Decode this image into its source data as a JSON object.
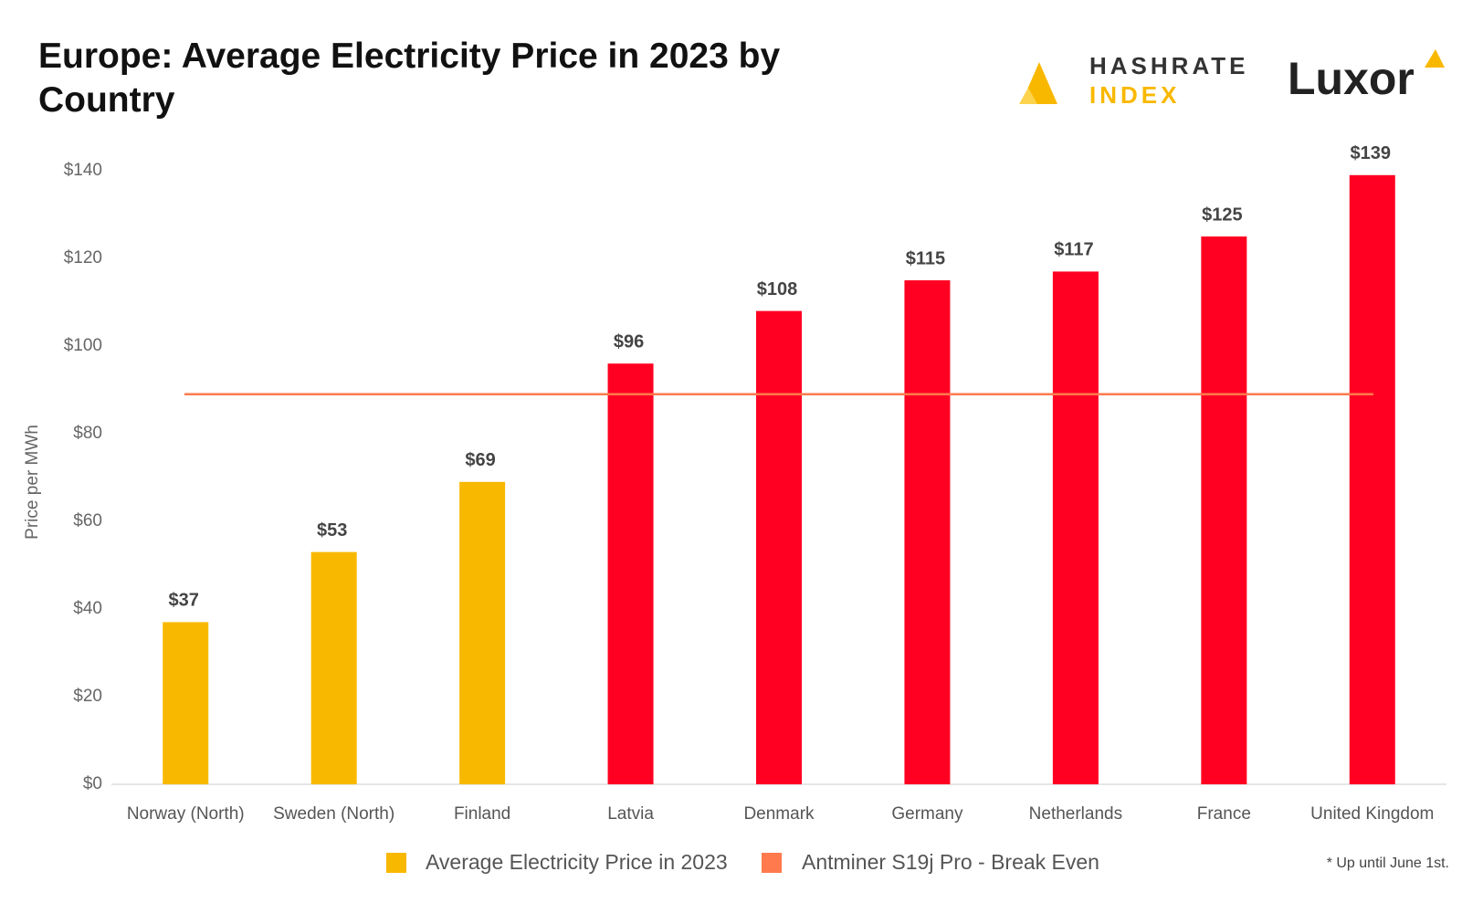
{
  "chart_data": {
    "type": "bar",
    "title": "Europe: Average Electricity Price in 2023 by Country",
    "y_label": "Price per MWh",
    "categories": [
      "Norway (North)",
      "Sweden (North)",
      "Finland",
      "Latvia",
      "Denmark",
      "Germany",
      "Netherlands",
      "France",
      "United Kingdom"
    ],
    "series": [
      {
        "name": "Average Electricity Price in 2023",
        "color": "#f9b800",
        "values": [
          37,
          53,
          69,
          96,
          108,
          115,
          117,
          125,
          139
        ],
        "value_labels": [
          "$37",
          "$53",
          "$69",
          "$96",
          "$108",
          "$115",
          "$117",
          "$125",
          "$139"
        ],
        "colors": [
          "#f9b800",
          "#f9b800",
          "#f9b800",
          "#ff0022",
          "#ff0022",
          "#ff0022",
          "#ff0022",
          "#ff0022",
          "#ff0022"
        ]
      }
    ],
    "reference_line": {
      "name": "Antminer S19j Pro - Break Even",
      "color": "#ff7a4d",
      "value": 89
    },
    "ylim": [
      0,
      140
    ],
    "yticks": [
      {
        "value": 0,
        "label": "$0"
      },
      {
        "value": 20,
        "label": "$20"
      },
      {
        "value": 40,
        "label": "$40"
      },
      {
        "value": 60,
        "label": "$60"
      },
      {
        "value": 80,
        "label": "$80"
      },
      {
        "value": 100,
        "label": "$100"
      },
      {
        "value": 120,
        "label": "$120"
      },
      {
        "value": 140,
        "label": "$140"
      }
    ],
    "grid": false,
    "footnote": "* Up until June 1st.",
    "logos": {
      "hashrate_top": "HASHRATE",
      "hashrate_bottom": "INDEX",
      "luxor": "Luxor"
    }
  }
}
